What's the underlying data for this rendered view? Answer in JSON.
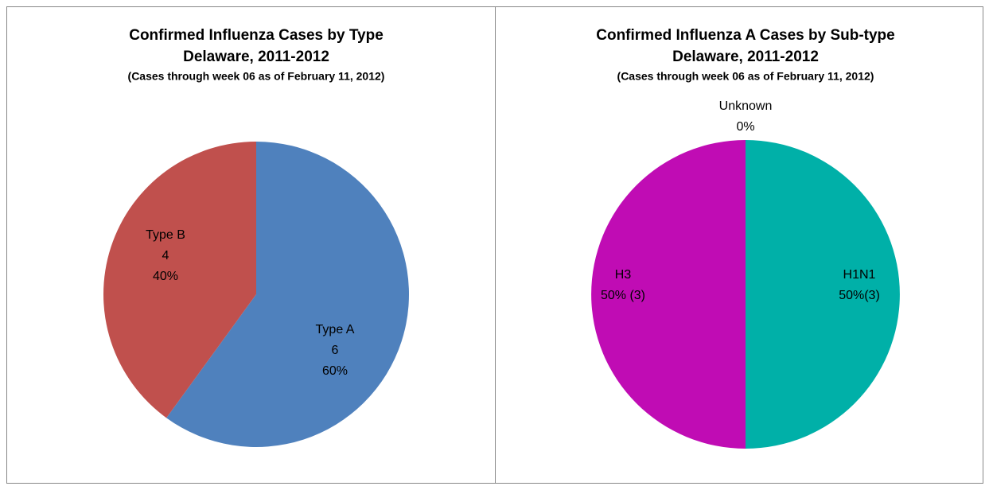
{
  "chart_data": [
    {
      "type": "pie",
      "title": "Confirmed Influenza Cases by Type",
      "subtitle": "Delaware, 2011-2012",
      "note": "(Cases through week 06 as of February 11, 2012)",
      "categories": [
        "Type A",
        "Type B"
      ],
      "values": [
        60,
        40
      ],
      "counts": [
        6,
        4
      ],
      "value_labels": [
        "60%",
        "40%"
      ],
      "colors": [
        "#4f81bd",
        "#c0504d"
      ]
    },
    {
      "type": "pie",
      "title": "Confirmed Influenza  A Cases by Sub-type",
      "subtitle": "Delaware, 2011-2012",
      "note": "(Cases through week 06 as of February 11, 2012)",
      "categories": [
        "Unknown",
        "H1N1",
        "H3"
      ],
      "values": [
        0,
        50,
        50
      ],
      "value_labels": [
        "0%",
        "50%(3)",
        "50% (3)"
      ],
      "colors": [
        "#4f81bd",
        "#00b0a8",
        "#c00cb4"
      ]
    }
  ]
}
